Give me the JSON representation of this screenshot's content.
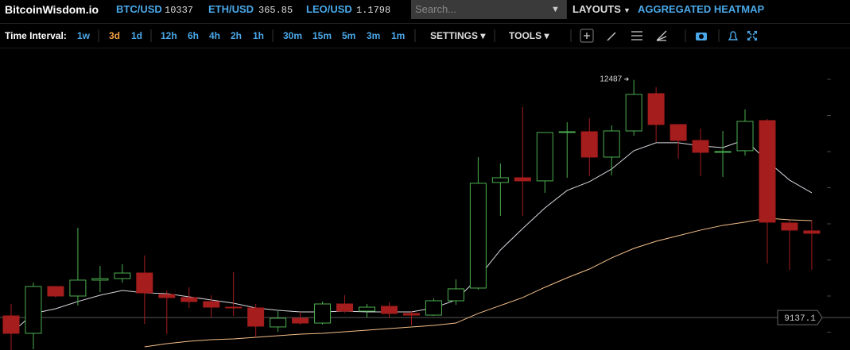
{
  "header": {
    "brand": "BitcoinWisdom.io",
    "tickers": [
      {
        "pair": "BTC/USD",
        "price": "10337"
      },
      {
        "pair": "ETH/USD",
        "price": "365.85"
      },
      {
        "pair": "LEO/USD",
        "price": "1.1798"
      }
    ],
    "search_placeholder": "Search...",
    "menus": [
      "LAYOUTS",
      "AGGREGATED HEATMAP"
    ]
  },
  "toolbar": {
    "interval_label": "Time Interval:",
    "intervals": [
      "1w",
      "3d",
      "1d",
      "12h",
      "6h",
      "4h",
      "2h",
      "1h",
      "30m",
      "15m",
      "5m",
      "3m",
      "1m"
    ],
    "active_interval": "3d",
    "menus": [
      "SETTINGS",
      "TOOLS"
    ]
  },
  "chart_data": {
    "type": "candlestick",
    "up_color": "#4caf50",
    "down_color": "#a51d1d",
    "ylim": [
      8680,
      12920
    ],
    "open": [
      9161,
      8915,
      9575,
      9441,
      9665,
      9687,
      9765,
      9463,
      9419,
      9363,
      9284,
      9273,
      9005,
      9128,
      9060,
      9329,
      9228,
      9295,
      9195,
      9172,
      9374,
      9553,
      11041,
      11108,
      11064,
      11746,
      11757,
      11399,
      11768,
      12294,
      11858,
      11634,
      11466,
      11489,
      11914,
      10470,
      10359
    ],
    "high": [
      9329,
      9631,
      9575,
      10403,
      9866,
      9889,
      10012,
      9519,
      9564,
      9452,
      9777,
      9329,
      9228,
      9217,
      9363,
      9452,
      9329,
      9351,
      9228,
      9407,
      9676,
      11399,
      11310,
      12104,
      11746,
      11892,
      11948,
      11847,
      12487,
      12384,
      11858,
      11802,
      11768,
      12071,
      11936,
      10504,
      10504
    ],
    "low": [
      8680,
      8691,
      9419,
      9307,
      9497,
      9631,
      9049,
      8904,
      9273,
      9139,
      9161,
      8859,
      8937,
      9038,
      9038,
      9206,
      9139,
      9139,
      9027,
      9161,
      9318,
      9530,
      10571,
      10571,
      10896,
      11108,
      11131,
      11142,
      11701,
      11612,
      11377,
      11131,
      11119,
      11422,
      9900,
      9810,
      9810
    ],
    "close": [
      8915,
      9575,
      9441,
      9665,
      9687,
      9765,
      9486,
      9419,
      9363,
      9284,
      9273,
      9016,
      9128,
      9060,
      9329,
      9228,
      9284,
      9195,
      9172,
      9374,
      9542,
      11030,
      11108,
      11064,
      11746,
      11757,
      11399,
      11768,
      12283,
      11858,
      11634,
      11466,
      11478,
      11903,
      10482,
      10370,
      10325
    ],
    "moving_averages": [
      {
        "color": "#d8d8e0",
        "values": [
          8915,
          9195,
          9262,
          9363,
          9452,
          9519,
          9486,
          9475,
          9430,
          9385,
          9340,
          9273,
          9240,
          9217,
          9217,
          9228,
          9217,
          9217,
          9217,
          9273,
          9385,
          9698,
          10090,
          10392,
          10683,
          10929,
          11052,
          11231,
          11489,
          11601,
          11601,
          11556,
          11533,
          11645,
          11343,
          11075,
          10896
        ]
      },
      {
        "color": "#f5c08a",
        "values": [
          null,
          null,
          null,
          null,
          null,
          null,
          8725,
          8770,
          8803,
          8825,
          8837,
          8859,
          8881,
          8904,
          8915,
          8937,
          8960,
          8982,
          9005,
          9027,
          9060,
          9195,
          9307,
          9419,
          9564,
          9698,
          9821,
          9978,
          10112,
          10213,
          10291,
          10370,
          10437,
          10482,
          10538,
          10515,
          10504
        ]
      }
    ],
    "price_line": 9137.1
  }
}
